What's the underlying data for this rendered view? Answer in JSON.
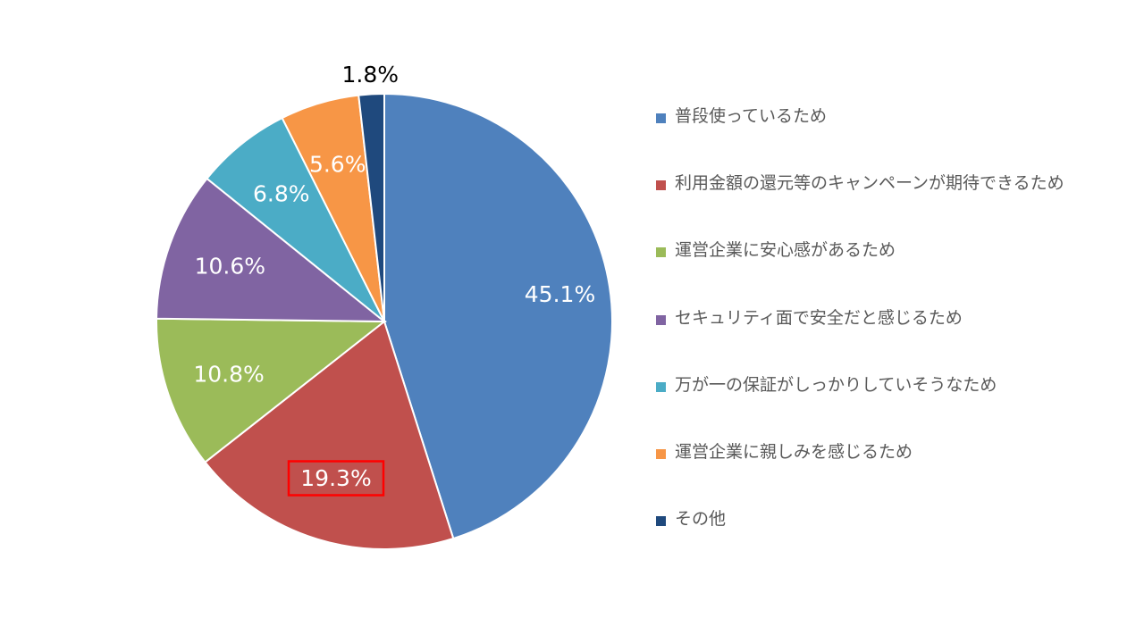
{
  "chart_data": {
    "type": "pie",
    "slices": [
      {
        "label": "普段使っているため",
        "value": 45.1,
        "value_label": "45.1%",
        "color": "#4F81BD",
        "label_color": "#FFFFFF"
      },
      {
        "label": "利用金額の還元等のキャンペーンが期待できるため",
        "value": 19.3,
        "value_label": "19.3%",
        "color": "#C0504D",
        "label_color": "#FFFFFF",
        "highlighted": true
      },
      {
        "label": "運営企業に安心感があるため",
        "value": 10.8,
        "value_label": "10.8%",
        "color": "#9BBB59",
        "label_color": "#FFFFFF"
      },
      {
        "label": "セキュリティ面で安全だと感じるため",
        "value": 10.6,
        "value_label": "10.6%",
        "color": "#8064A2",
        "label_color": "#FFFFFF"
      },
      {
        "label": "万が一の保証がしっかりしていそうなため",
        "value": 6.8,
        "value_label": "6.8%",
        "color": "#4BACC6",
        "label_color": "#FFFFFF"
      },
      {
        "label": "運営企業に親しみを感じるため",
        "value": 5.6,
        "value_label": "5.6%",
        "color": "#F79646",
        "label_color": "#FFFFFF"
      },
      {
        "label": "その他",
        "value": 1.8,
        "value_label": "1.8%",
        "color": "#1F497D",
        "label_color": "#000000",
        "label_outside": true
      }
    ],
    "start_angle": "12 o'clock",
    "direction": "clockwise",
    "legend_position": "right",
    "highlight_color": "#FF0000"
  }
}
